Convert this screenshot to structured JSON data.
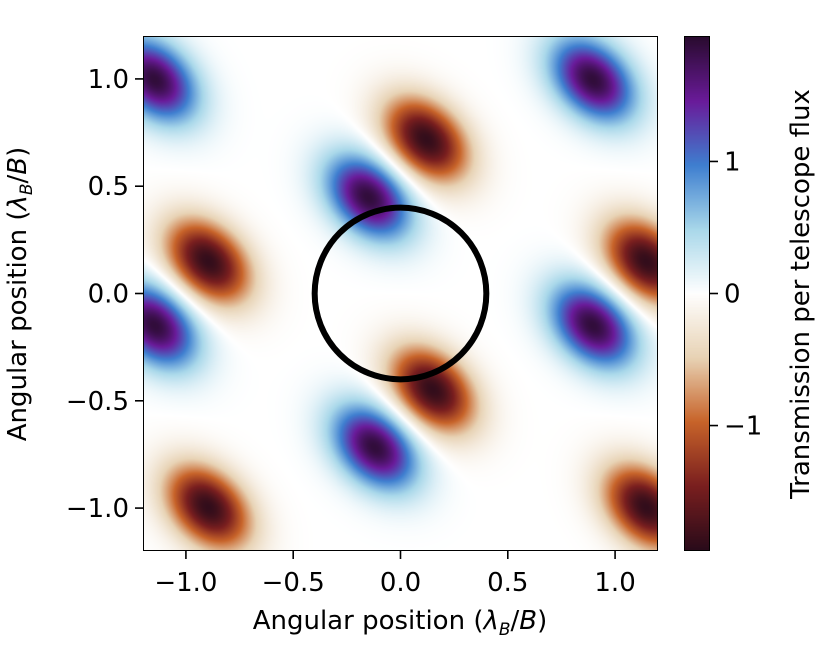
{
  "chart_data": {
    "type": "heatmap",
    "title": "",
    "xlabel": "Angular position (λ_B/B)",
    "ylabel": "Angular position (λ_B/B)",
    "xlabel_parts": {
      "prefix": "Angular position (",
      "lambda": "λ",
      "sub": "B",
      "suffix": "/",
      "B": "B",
      "close": ")"
    },
    "xlim": [
      -1.2,
      1.2
    ],
    "ylim": [
      -1.2,
      1.2
    ],
    "xticks": [
      -1.0,
      -0.5,
      0.0,
      0.5,
      1.0
    ],
    "xtick_labels": [
      "−1.0",
      "−0.5",
      "0.0",
      "0.5",
      "1.0"
    ],
    "yticks": [
      -1.0,
      -0.5,
      0.0,
      0.5,
      1.0
    ],
    "ytick_labels": [
      "−1.0",
      "−0.5",
      "0.0",
      "0.5",
      "1.0"
    ],
    "colorbar": {
      "label": "Transmission per telescope flux",
      "range": [
        -1.95,
        1.95
      ],
      "ticks": [
        -1,
        0,
        1
      ],
      "tick_labels": [
        "−1",
        "0",
        "1"
      ],
      "colormap": [
        "#2a0b2f",
        "#6a1b9a",
        "#3f7fd0",
        "#a9d8ea",
        "#ffffff",
        "#e8d3b5",
        "#c8642a",
        "#7a1f1f",
        "#2a0b1a"
      ]
    },
    "pattern": {
      "description_free": true,
      "field_peaks": [
        {
          "x": -1.15,
          "y": 1.0,
          "value": 1.9
        },
        {
          "x": 0.12,
          "y": 0.72,
          "value": -1.9
        },
        {
          "x": -0.9,
          "y": 0.15,
          "value": -1.9
        },
        {
          "x": -0.15,
          "y": 0.45,
          "value": 1.9
        },
        {
          "x": 0.9,
          "y": 1.0,
          "value": 1.9
        },
        {
          "x": 0.9,
          "y": -0.15,
          "value": 1.9
        },
        {
          "x": 1.15,
          "y": 0.15,
          "value": -1.9
        },
        {
          "x": 0.15,
          "y": -0.45,
          "value": -1.9
        },
        {
          "x": -0.12,
          "y": -0.72,
          "value": 1.9
        },
        {
          "x": -0.9,
          "y": -1.0,
          "value": -1.9
        },
        {
          "x": 1.15,
          "y": -1.0,
          "value": -1.9
        },
        {
          "x": -1.15,
          "y": -0.15,
          "value": 1.9
        }
      ]
    },
    "circle": {
      "cx": 0.0,
      "cy": 0.0,
      "r": 0.4,
      "color": "#000000"
    }
  }
}
